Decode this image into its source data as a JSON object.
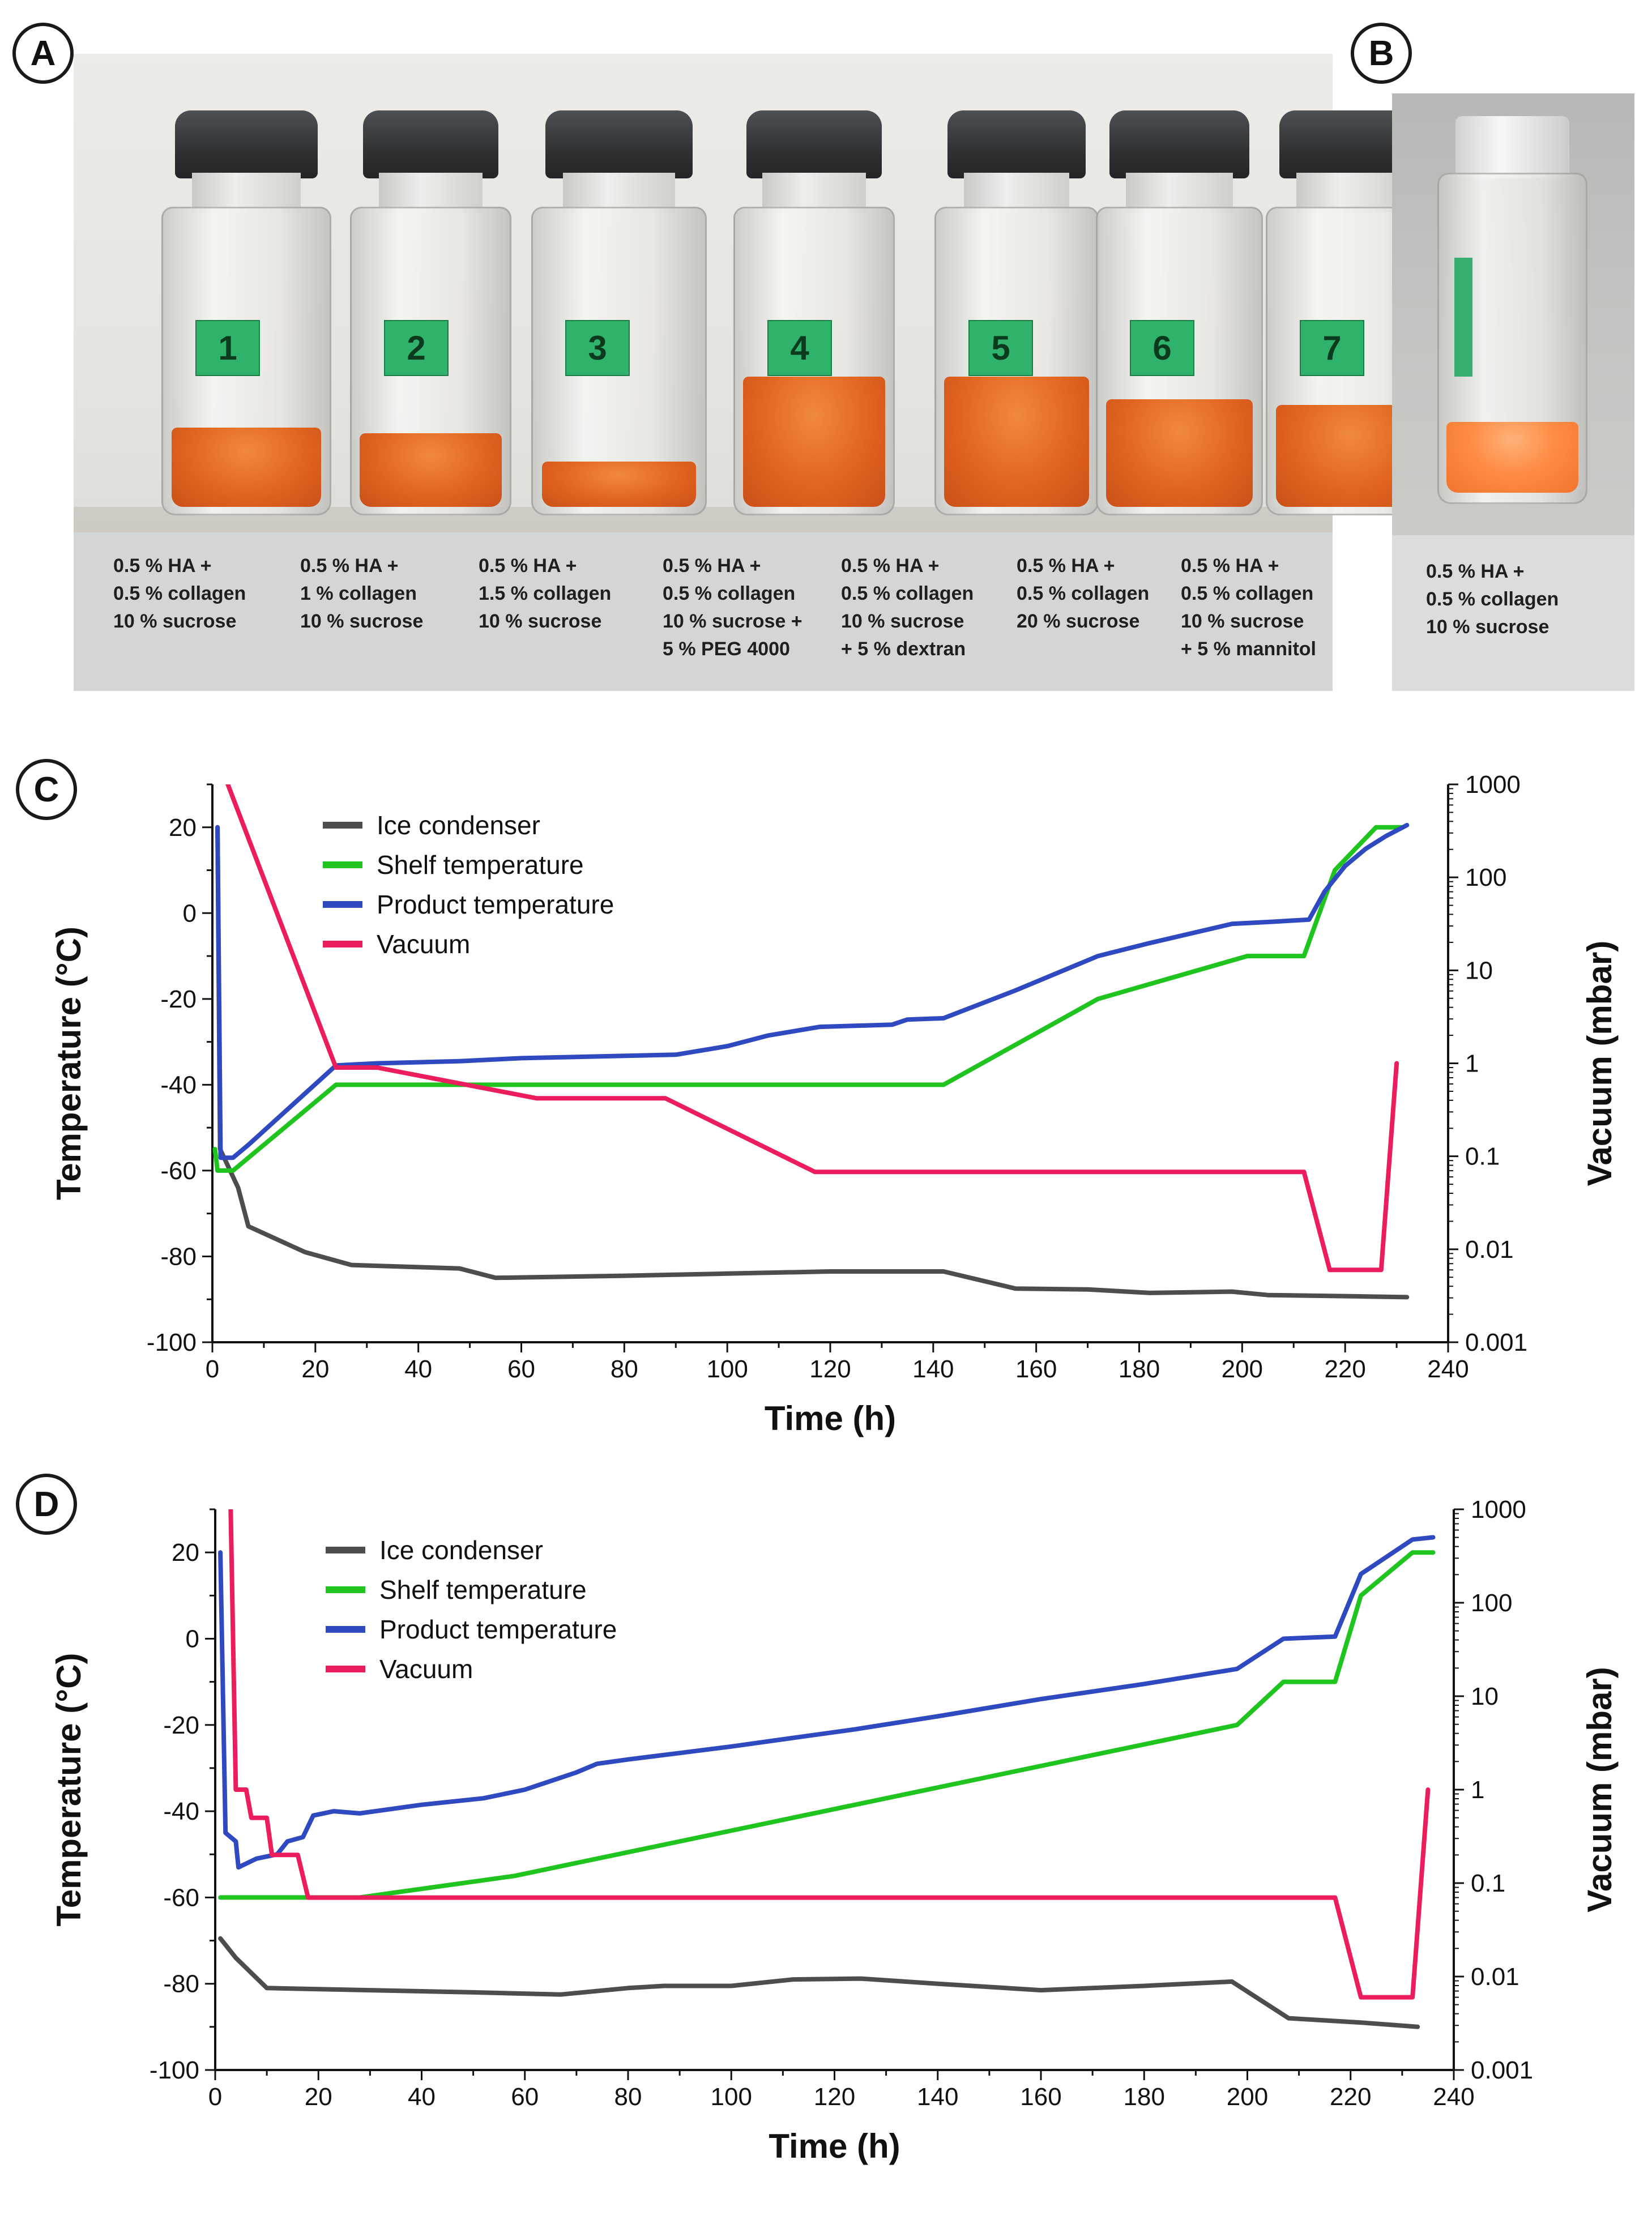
{
  "panels": {
    "a": {
      "letter": "A",
      "vials": [
        {
          "number": "1",
          "caption": [
            "0.5 % HA +",
            "0.5 % collagen",
            "10 % sucrose"
          ]
        },
        {
          "number": "2",
          "caption": [
            "0.5 % HA +",
            "1 % collagen",
            "10 % sucrose"
          ]
        },
        {
          "number": "3",
          "caption": [
            "0.5 % HA +",
            "1.5 % collagen",
            "10 % sucrose"
          ]
        },
        {
          "number": "4",
          "caption": [
            "0.5 % HA +",
            "0.5 % collagen",
            "10 % sucrose +",
            "5 % PEG 4000"
          ]
        },
        {
          "number": "5",
          "caption": [
            "0.5 % HA +",
            "0.5 % collagen",
            "10 % sucrose",
            "+ 5 % dextran"
          ]
        },
        {
          "number": "6",
          "caption": [
            "0.5 % HA +",
            "0.5 % collagen",
            "20 % sucrose"
          ]
        },
        {
          "number": "7",
          "caption": [
            "0.5 % HA +",
            "0.5 % collagen",
            "10 % sucrose",
            "+ 5 % mannitol"
          ]
        }
      ]
    },
    "b": {
      "letter": "B",
      "caption": [
        "0.5 % HA +",
        "0.5 % collagen",
        "10 % sucrose"
      ]
    }
  },
  "colors": {
    "ice_condenser": "#4d4d4d",
    "shelf": "#1fc41f",
    "product": "#2f49c0",
    "vacuum": "#ec1d5c"
  },
  "chart_data": [
    {
      "panel": "C",
      "type": "line",
      "xlabel": "Time (h)",
      "ylabel": "Temperature (°C)",
      "y2label": "Vacuum (mbar)",
      "xlim": [
        0,
        240
      ],
      "ylim": [
        -100,
        30
      ],
      "y2lim": [
        0.001,
        1000
      ],
      "y2scale": "log",
      "xticks": [
        0,
        20,
        40,
        60,
        80,
        100,
        120,
        140,
        160,
        180,
        200,
        220,
        240
      ],
      "yticks": [
        20,
        0,
        -20,
        -40,
        -60,
        -80,
        -100
      ],
      "y2ticks": [
        "1000",
        "100",
        "10",
        "1",
        "0.1",
        "0.01",
        "0.001"
      ],
      "y2tickvalues": [
        1000,
        100,
        10,
        1,
        0.1,
        0.01,
        0.001
      ],
      "legend_position": "top-left",
      "legend": [
        "Ice condenser",
        "Shelf temperature",
        "Product temperature",
        "Vacuum"
      ],
      "series": [
        {
          "name": "Ice condenser",
          "axis": "left",
          "color_key": "ice_condenser",
          "points": [
            [
              1,
              20
            ],
            [
              1.5,
              -55
            ],
            [
              5,
              -64
            ],
            [
              7,
              -73
            ],
            [
              18,
              -79
            ],
            [
              27,
              -82
            ],
            [
              40,
              -82.5
            ],
            [
              48,
              -82.8
            ],
            [
              55,
              -85
            ],
            [
              80,
              -84.5
            ],
            [
              100,
              -84
            ],
            [
              120,
              -83.5
            ],
            [
              142,
              -83.5
            ],
            [
              156,
              -87.5
            ],
            [
              170,
              -87.7
            ],
            [
              182,
              -88.5
            ],
            [
              198,
              -88.2
            ],
            [
              205,
              -89
            ],
            [
              222,
              -89.3
            ],
            [
              232,
              -89.5
            ]
          ]
        },
        {
          "name": "Shelf temperature",
          "axis": "left",
          "color_key": "shelf",
          "points": [
            [
              0.5,
              -55
            ],
            [
              1,
              -60
            ],
            [
              4,
              -60
            ],
            [
              24,
              -40
            ],
            [
              142,
              -40
            ],
            [
              172,
              -20
            ],
            [
              201,
              -10
            ],
            [
              212,
              -10
            ],
            [
              218,
              10
            ],
            [
              226,
              20
            ],
            [
              231,
              20
            ]
          ]
        },
        {
          "name": "Product temperature",
          "axis": "left",
          "color_key": "product",
          "points": [
            [
              1,
              20
            ],
            [
              1.6,
              -57
            ],
            [
              4,
              -57
            ],
            [
              7,
              -54
            ],
            [
              24,
              -35.5
            ],
            [
              32,
              -35
            ],
            [
              48,
              -34.5
            ],
            [
              60,
              -33.8
            ],
            [
              90,
              -33
            ],
            [
              100,
              -31
            ],
            [
              108,
              -28.5
            ],
            [
              118,
              -26.5
            ],
            [
              132,
              -26
            ],
            [
              135,
              -24.8
            ],
            [
              142,
              -24.5
            ],
            [
              156,
              -18
            ],
            [
              172,
              -10
            ],
            [
              182,
              -7
            ],
            [
              198,
              -2.5
            ],
            [
              206,
              -2
            ],
            [
              213,
              -1.5
            ],
            [
              216,
              5
            ],
            [
              220,
              11
            ],
            [
              224,
              15
            ],
            [
              228,
              18
            ],
            [
              232,
              20.5
            ]
          ]
        },
        {
          "name": "Vacuum",
          "axis": "right",
          "color_key": "vacuum",
          "points": [
            [
              3,
              1000
            ],
            [
              24,
              0.9
            ],
            [
              32,
              0.9
            ],
            [
              63,
              0.42
            ],
            [
              88,
              0.42
            ],
            [
              117,
              0.068
            ],
            [
              212,
              0.068
            ],
            [
              217,
              0.006
            ],
            [
              227,
              0.006
            ],
            [
              230,
              1
            ]
          ]
        }
      ]
    },
    {
      "panel": "D",
      "type": "line",
      "xlabel": "Time (h)",
      "ylabel": "Temperature (°C)",
      "y2label": "Vacuum (mbar)",
      "xlim": [
        0,
        240
      ],
      "ylim": [
        -100,
        30
      ],
      "y2lim": [
        0.001,
        1000
      ],
      "y2scale": "log",
      "xticks": [
        0,
        20,
        40,
        60,
        80,
        100,
        120,
        140,
        160,
        180,
        200,
        220,
        240
      ],
      "yticks": [
        20,
        0,
        -20,
        -40,
        -60,
        -80,
        -100
      ],
      "y2ticks": [
        "1000",
        "100",
        "10",
        "1",
        "0.1",
        "0.01",
        "0.001"
      ],
      "y2tickvalues": [
        1000,
        100,
        10,
        1,
        0.1,
        0.01,
        0.001
      ],
      "legend_position": "top-left",
      "legend": [
        "Ice condenser",
        "Shelf temperature",
        "Product temperature",
        "Vacuum"
      ],
      "series": [
        {
          "name": "Ice condenser",
          "axis": "left",
          "color_key": "ice_condenser",
          "points": [
            [
              1,
              -69.5
            ],
            [
              4,
              -74
            ],
            [
              10,
              -81
            ],
            [
              30,
              -81.5
            ],
            [
              50,
              -82
            ],
            [
              67,
              -82.5
            ],
            [
              80,
              -81
            ],
            [
              87,
              -80.5
            ],
            [
              100,
              -80.5
            ],
            [
              112,
              -79
            ],
            [
              125,
              -78.8
            ],
            [
              140,
              -80
            ],
            [
              160,
              -81.5
            ],
            [
              180,
              -80.5
            ],
            [
              197,
              -79.5
            ],
            [
              208,
              -88
            ],
            [
              222,
              -89
            ],
            [
              233,
              -90
            ]
          ]
        },
        {
          "name": "Shelf temperature",
          "axis": "left",
          "color_key": "shelf",
          "points": [
            [
              1,
              -60
            ],
            [
              28,
              -60
            ],
            [
              58,
              -55
            ],
            [
              198,
              -20
            ],
            [
              207,
              -10
            ],
            [
              217,
              -10
            ],
            [
              222,
              10
            ],
            [
              232,
              20
            ],
            [
              236,
              20
            ]
          ]
        },
        {
          "name": "Product temperature",
          "axis": "left",
          "color_key": "product",
          "points": [
            [
              1,
              20
            ],
            [
              2,
              -45
            ],
            [
              4,
              -47
            ],
            [
              4.5,
              -53
            ],
            [
              8,
              -51
            ],
            [
              12,
              -50
            ],
            [
              14,
              -47
            ],
            [
              17,
              -46
            ],
            [
              19,
              -41
            ],
            [
              23,
              -40
            ],
            [
              28,
              -40.5
            ],
            [
              40,
              -38.5
            ],
            [
              52,
              -37
            ],
            [
              60,
              -35
            ],
            [
              65,
              -33
            ],
            [
              70,
              -31
            ],
            [
              74,
              -29
            ],
            [
              80,
              -28
            ],
            [
              90,
              -26.5
            ],
            [
              100,
              -25
            ],
            [
              112,
              -23
            ],
            [
              124,
              -21
            ],
            [
              140,
              -18
            ],
            [
              160,
              -14
            ],
            [
              180,
              -10.5
            ],
            [
              198,
              -7
            ],
            [
              207,
              0
            ],
            [
              217,
              0.5
            ],
            [
              222,
              15
            ],
            [
              232,
              23
            ],
            [
              236,
              23.5
            ]
          ]
        },
        {
          "name": "Vacuum",
          "axis": "right",
          "color_key": "vacuum",
          "points": [
            [
              3,
              1000
            ],
            [
              4,
              1
            ],
            [
              6,
              1
            ],
            [
              7,
              0.5
            ],
            [
              10,
              0.5
            ],
            [
              11,
              0.2
            ],
            [
              16,
              0.2
            ],
            [
              18,
              0.07
            ],
            [
              217,
              0.07
            ],
            [
              222,
              0.006
            ],
            [
              232,
              0.006
            ],
            [
              235,
              1
            ]
          ]
        }
      ]
    }
  ]
}
